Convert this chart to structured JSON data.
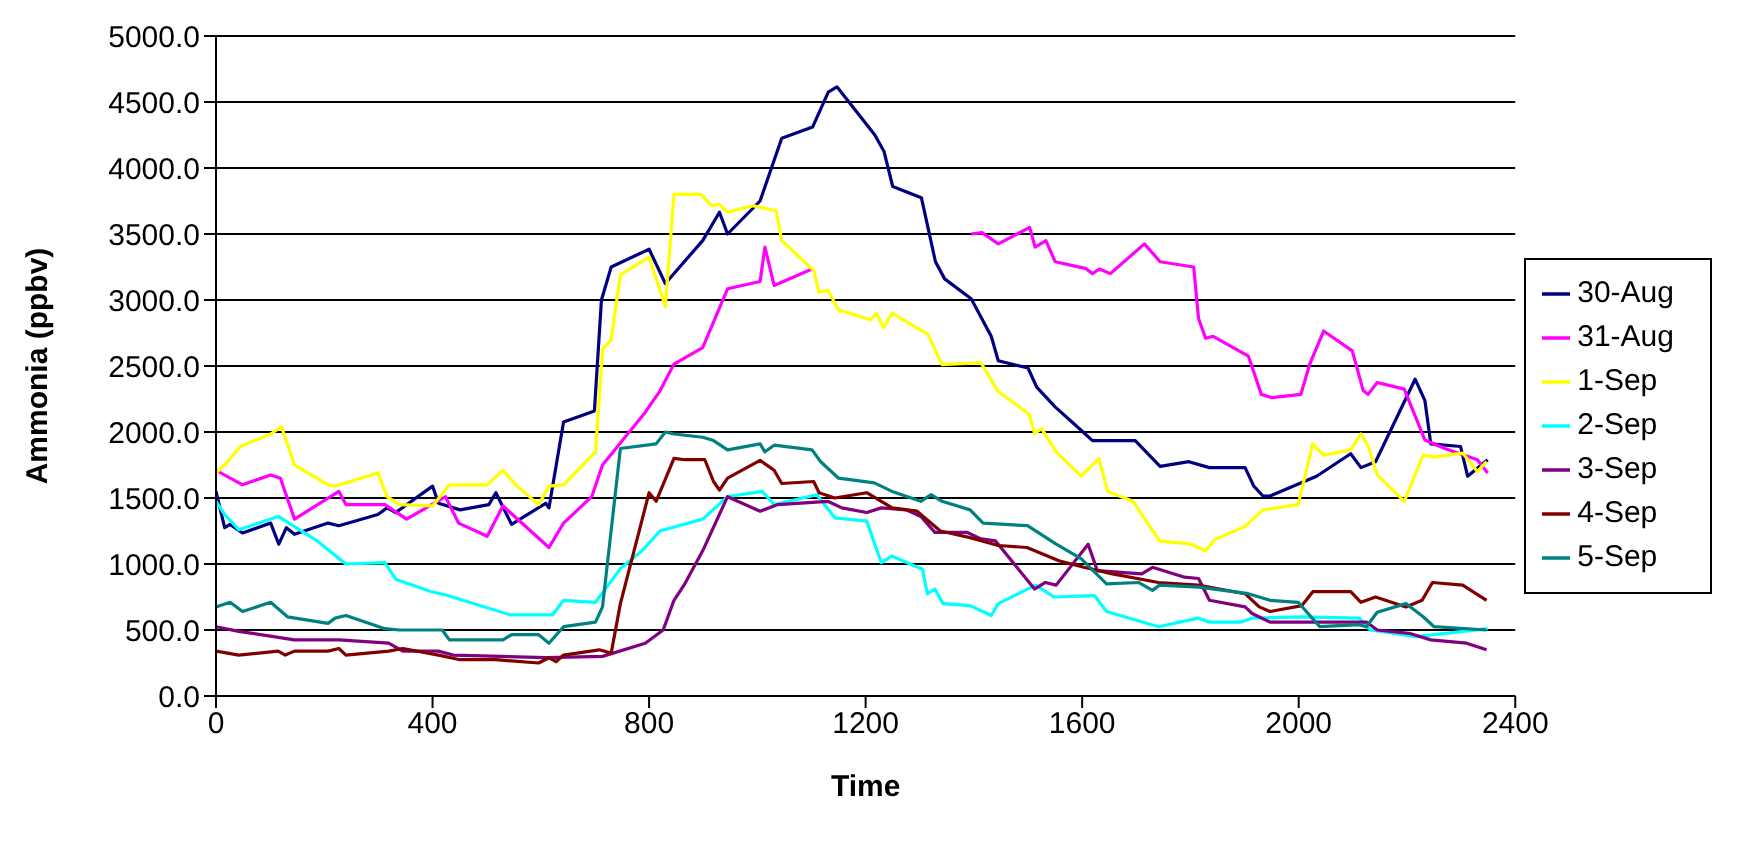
{
  "chart_data": {
    "type": "line",
    "xlabel": "Time",
    "ylabel": "Ammonia (ppbv)",
    "xlim": [
      0,
      2400
    ],
    "xticks": [
      0,
      400,
      800,
      1200,
      1600,
      2000,
      2400
    ],
    "ylim": [
      0,
      5000
    ],
    "yticks": [
      {
        "value": 0,
        "label": "0.0"
      },
      {
        "value": 500,
        "label": "500.0"
      },
      {
        "value": 1000,
        "label": "1000.0"
      },
      {
        "value": 1500,
        "label": "1500.0"
      },
      {
        "value": 2000,
        "label": "2000.0"
      },
      {
        "value": 2500,
        "label": "2500.0"
      },
      {
        "value": 3000,
        "label": "3000.0"
      },
      {
        "value": 3500,
        "label": "3500.0"
      },
      {
        "value": 4000,
        "label": "4000.0"
      },
      {
        "value": 4500,
        "label": "4500.0"
      },
      {
        "value": 5000,
        "label": "5000.0"
      }
    ],
    "grid": "y",
    "legend": "right",
    "marker": "none",
    "line_style": "solid",
    "series": [
      {
        "name": "30-Aug",
        "color": "#000080",
        "x": [
          0,
          16,
          26,
          49,
          101,
          116,
          130,
          145,
          207,
          227,
          299,
          316,
          332,
          400,
          411,
          451,
          504,
          517,
          546,
          609,
          615,
          642,
          699,
          712,
          730,
          800,
          830,
          899,
          930,
          945,
          1005,
          1045,
          1102,
          1131,
          1147,
          1217,
          1234,
          1250,
          1303,
          1329,
          1346,
          1395,
          1432,
          1445,
          1500,
          1516,
          1550,
          1595,
          1619,
          1698,
          1744,
          1797,
          1835,
          1901,
          1917,
          1934,
          1947,
          2033,
          2096,
          2115,
          2142,
          2215,
          2233,
          2244,
          2299,
          2312,
          2349
        ],
        "values": [
          1550,
          1275,
          1300,
          1235,
          1310,
          1150,
          1275,
          1225,
          1310,
          1290,
          1375,
          1425,
          1390,
          1590,
          1460,
          1410,
          1450,
          1540,
          1300,
          1460,
          1425,
          2075,
          2160,
          3000,
          3250,
          3385,
          3125,
          3450,
          3665,
          3500,
          3750,
          4225,
          4310,
          4575,
          4615,
          4250,
          4125,
          3860,
          3775,
          3290,
          3160,
          3010,
          2725,
          2540,
          2485,
          2340,
          2190,
          2025,
          1935,
          1935,
          1740,
          1775,
          1730,
          1730,
          1590,
          1515,
          1515,
          1665,
          1835,
          1730,
          1775,
          2400,
          2240,
          1910,
          1890,
          1665,
          1790
        ]
      },
      {
        "name": "31-Aug",
        "color": "#ff00ff",
        "x": [
          0,
          49,
          101,
          119,
          145,
          227,
          240,
          312,
          352,
          424,
          448,
          501,
          530,
          615,
          642,
          694,
          714,
          793,
          820,
          846,
          899,
          945,
          1005,
          1014,
          1031,
          1101,
          1250,
          1395,
          1415,
          1445,
          1503,
          1513,
          1533,
          1550,
          1606,
          1619,
          1632,
          1652,
          1715,
          1744,
          1806,
          1815,
          1828,
          1842,
          1907,
          1931,
          1951,
          2004,
          2020,
          2046,
          2099,
          2119,
          2128,
          2145,
          2195,
          2233,
          2270,
          2330,
          2349
        ],
        "values": [
          1710,
          1600,
          1675,
          1650,
          1340,
          1550,
          1450,
          1450,
          1340,
          1510,
          1310,
          1210,
          1440,
          1125,
          1310,
          1510,
          1750,
          2150,
          2310,
          2515,
          2640,
          3085,
          3140,
          3400,
          3110,
          3235,
          null,
          3500,
          3510,
          3425,
          3550,
          3400,
          3450,
          3290,
          3240,
          3200,
          3235,
          3200,
          3425,
          3290,
          3250,
          2860,
          2710,
          2725,
          2575,
          2285,
          2260,
          2285,
          2510,
          2765,
          2615,
          2315,
          2285,
          2375,
          2325,
          1940,
          1875,
          1790,
          1690
        ]
      },
      {
        "name": "1-Sep",
        "color": "#ffff00",
        "x": [
          0,
          16,
          45,
          101,
          121,
          145,
          207,
          220,
          299,
          316,
          339,
          400,
          431,
          501,
          530,
          556,
          596,
          615,
          642,
          701,
          714,
          730,
          747,
          800,
          830,
          846,
          896,
          916,
          930,
          945,
          991,
          1035,
          1045,
          1104,
          1114,
          1130,
          1150,
          1209,
          1220,
          1233,
          1249,
          1315,
          1341,
          1413,
          1444,
          1502,
          1512,
          1525,
          1552,
          1598,
          1631,
          1647,
          1694,
          1743,
          1802,
          1828,
          1845,
          1901,
          1934,
          1999,
          2026,
          2046,
          2096,
          2115,
          2129,
          2145,
          2195,
          2230,
          2250,
          2303,
          2330,
          2347
        ],
        "values": [
          1690,
          1750,
          1890,
          1985,
          2040,
          1750,
          1600,
          1590,
          1690,
          1510,
          1450,
          1440,
          1600,
          1600,
          1710,
          1590,
          1450,
          1590,
          1600,
          1850,
          2625,
          2700,
          3190,
          3325,
          2950,
          3800,
          3800,
          3715,
          3725,
          3665,
          3715,
          3675,
          3450,
          3225,
          3060,
          3075,
          2925,
          2850,
          2900,
          2790,
          2900,
          2740,
          2510,
          2525,
          2310,
          2135,
          1990,
          2025,
          1850,
          1665,
          1800,
          1550,
          1475,
          1175,
          1150,
          1100,
          1185,
          1285,
          1410,
          1450,
          1910,
          1825,
          1865,
          1985,
          1890,
          1675,
          1475,
          1825,
          1810,
          1840,
          1700,
          1775
        ]
      },
      {
        "name": "2-Sep",
        "color": "#00ffff",
        "x": [
          0,
          16,
          42,
          115,
          187,
          240,
          312,
          332,
          398,
          425,
          543,
          622,
          642,
          701,
          747,
          787,
          820,
          899,
          945,
          1009,
          1031,
          1110,
          1143,
          1202,
          1229,
          1248,
          1305,
          1314,
          1328,
          1343,
          1393,
          1432,
          1445,
          1514,
          1548,
          1623,
          1645,
          1741,
          1814,
          1835,
          1894,
          1914,
          2006,
          2112,
          2132,
          2218,
          2349
        ],
        "values": [
          1475,
          1375,
          1260,
          1360,
          1175,
          1000,
          1010,
          885,
          790,
          765,
          615,
          615,
          725,
          710,
          965,
          1100,
          1250,
          1340,
          1510,
          1550,
          1450,
          1525,
          1350,
          1325,
          1010,
          1060,
          960,
          775,
          810,
          700,
          685,
          610,
          700,
          840,
          750,
          760,
          640,
          525,
          590,
          560,
          560,
          590,
          600,
          590,
          500,
          450,
          510
        ]
      },
      {
        "name": "3-Sep",
        "color": "#800080",
        "x": [
          0,
          42,
          145,
          227,
          319,
          345,
          411,
          438,
          609,
          714,
          793,
          826,
          846,
          866,
          899,
          945,
          1005,
          1038,
          1130,
          1156,
          1202,
          1229,
          1275,
          1302,
          1328,
          1387,
          1413,
          1440,
          1512,
          1532,
          1552,
          1611,
          1628,
          1710,
          1730,
          1789,
          1815,
          1835,
          1901,
          1914,
          1947,
          1993,
          2125,
          2145,
          2204,
          2244,
          2310,
          2347
        ],
        "values": [
          525,
          490,
          425,
          425,
          400,
          340,
          340,
          310,
          290,
          300,
          400,
          500,
          725,
          850,
          1100,
          1510,
          1400,
          1450,
          1475,
          1425,
          1390,
          1425,
          1410,
          1360,
          1240,
          1240,
          1190,
          1175,
          810,
          860,
          840,
          1150,
          950,
          925,
          975,
          900,
          890,
          725,
          675,
          625,
          560,
          560,
          560,
          500,
          475,
          425,
          400,
          350
        ]
      },
      {
        "name": "4-Sep",
        "color": "#800000",
        "x": [
          0,
          42,
          115,
          128,
          145,
          207,
          227,
          240,
          319,
          345,
          411,
          451,
          517,
          596,
          615,
          628,
          642,
          708,
          730,
          747,
          800,
          813,
          846,
          866,
          903,
          919,
          930,
          945,
          1005,
          1031,
          1045,
          1104,
          1114,
          1143,
          1202,
          1249,
          1295,
          1338,
          1393,
          1445,
          1498,
          1557,
          1603,
          1656,
          1741,
          1814,
          1901,
          1927,
          1947,
          2006,
          2026,
          2096,
          2115,
          2142,
          2198,
          2228,
          2247,
          2303,
          2347
        ],
        "values": [
          340,
          310,
          340,
          310,
          340,
          340,
          360,
          310,
          340,
          360,
          310,
          275,
          275,
          250,
          290,
          260,
          310,
          350,
          325,
          700,
          1540,
          1475,
          1800,
          1790,
          1790,
          1625,
          1560,
          1650,
          1785,
          1710,
          1610,
          1625,
          1540,
          1500,
          1540,
          1425,
          1400,
          1250,
          1200,
          1140,
          1125,
          1025,
          975,
          925,
          860,
          840,
          775,
          675,
          640,
          685,
          790,
          790,
          710,
          750,
          675,
          725,
          860,
          840,
          725
        ]
      },
      {
        "name": "5-Sep",
        "color": "#008080",
        "x": [
          0,
          26,
          49,
          101,
          132,
          207,
          220,
          240,
          312,
          339,
          418,
          431,
          530,
          546,
          596,
          615,
          642,
          701,
          714,
          747,
          813,
          830,
          846,
          899,
          919,
          945,
          1005,
          1014,
          1031,
          1101,
          1117,
          1150,
          1216,
          1249,
          1302,
          1321,
          1341,
          1393,
          1417,
          1499,
          1552,
          1598,
          1645,
          1704,
          1730,
          1743,
          1816,
          1907,
          1947,
          1999,
          2039,
          2112,
          2125,
          2145,
          2198,
          2230,
          2250,
          2347
        ],
        "values": [
          675,
          710,
          640,
          710,
          600,
          550,
          590,
          610,
          510,
          500,
          500,
          425,
          425,
          465,
          465,
          400,
          525,
          560,
          675,
          1875,
          1910,
          2000,
          1985,
          1960,
          1935,
          1865,
          1910,
          1850,
          1900,
          1865,
          1775,
          1650,
          1615,
          1550,
          1475,
          1525,
          1475,
          1410,
          1310,
          1290,
          1150,
          1040,
          850,
          860,
          800,
          840,
          825,
          775,
          725,
          710,
          525,
          540,
          525,
          635,
          700,
          600,
          525,
          500
        ]
      }
    ]
  }
}
